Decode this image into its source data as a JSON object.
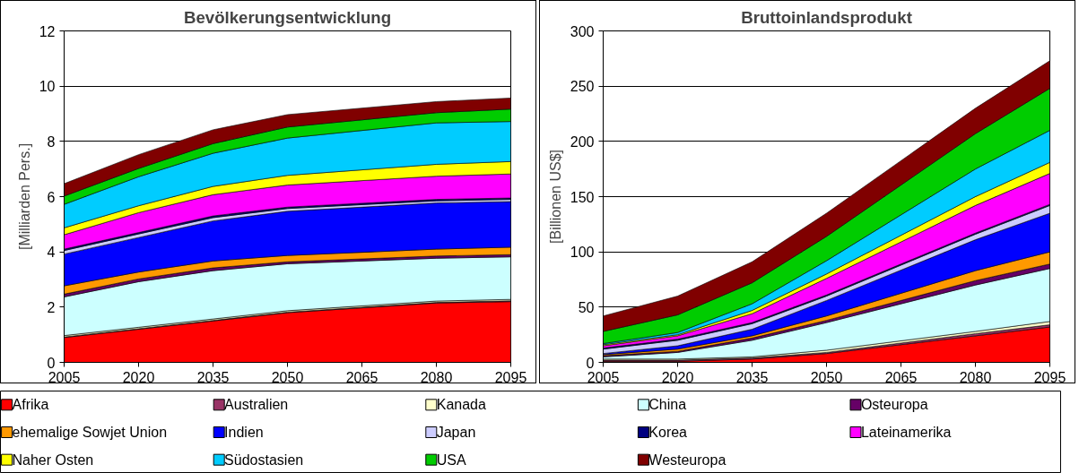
{
  "chart_data": [
    {
      "type": "area",
      "title": "Bevölkerungsentwicklung",
      "ylabel": "[Milliarden Pers.]",
      "stacked": true,
      "x": [
        2005,
        2020,
        2035,
        2050,
        2080,
        2095
      ],
      "xlim": [
        2005,
        2095
      ],
      "xticks": [
        2005,
        2020,
        2035,
        2050,
        2065,
        2080,
        2095
      ],
      "ylim": [
        0,
        12
      ],
      "yticks": [
        0,
        2,
        4,
        6,
        8,
        10,
        12
      ],
      "grid": "y",
      "legend": "bottom",
      "series": [
        {
          "name": "Afrika",
          "color": "#ff0000",
          "values": [
            0.9,
            1.2,
            1.5,
            1.8,
            2.15,
            2.2
          ]
        },
        {
          "name": "Australien",
          "color": "#993366",
          "values": [
            0.02,
            0.02,
            0.02,
            0.02,
            0.02,
            0.03
          ]
        },
        {
          "name": "Kanada",
          "color": "#ffffcc",
          "values": [
            0.05,
            0.05,
            0.05,
            0.05,
            0.05,
            0.05
          ]
        },
        {
          "name": "China",
          "color": "#ccffff",
          "values": [
            1.4,
            1.65,
            1.75,
            1.7,
            1.55,
            1.54
          ]
        },
        {
          "name": "Osteuropa",
          "color": "#660066",
          "values": [
            0.1,
            0.1,
            0.1,
            0.07,
            0.08,
            0.08
          ]
        },
        {
          "name": "ehemalige Sowjet Union",
          "color": "#ff9900",
          "values": [
            0.3,
            0.25,
            0.25,
            0.23,
            0.25,
            0.27
          ]
        },
        {
          "name": "Indien",
          "color": "#0000ff",
          "values": [
            1.15,
            1.25,
            1.45,
            1.6,
            1.67,
            1.65
          ]
        },
        {
          "name": "Japan",
          "color": "#ccccff",
          "values": [
            0.13,
            0.13,
            0.12,
            0.1,
            0.08,
            0.08
          ]
        },
        {
          "name": "Korea",
          "color": "#000080",
          "values": [
            0.05,
            0.05,
            0.06,
            0.05,
            0.05,
            0.05
          ]
        },
        {
          "name": "Lateinamerika",
          "color": "#ff00ff",
          "values": [
            0.52,
            0.72,
            0.77,
            0.8,
            0.84,
            0.87
          ]
        },
        {
          "name": "Naher Osten",
          "color": "#ffff00",
          "values": [
            0.25,
            0.25,
            0.3,
            0.35,
            0.43,
            0.45
          ]
        },
        {
          "name": "Südostasien",
          "color": "#00ccff",
          "values": [
            0.85,
            1.05,
            1.2,
            1.35,
            1.5,
            1.45
          ]
        },
        {
          "name": "USA",
          "color": "#00cc00",
          "values": [
            0.3,
            0.3,
            0.35,
            0.4,
            0.37,
            0.45
          ]
        },
        {
          "name": "Westeuropa",
          "color": "#800000",
          "values": [
            0.45,
            0.5,
            0.5,
            0.45,
            0.4,
            0.4
          ]
        }
      ]
    },
    {
      "type": "area",
      "title": "Bruttoinlandsprodukt",
      "ylabel": "[Billionen US$]",
      "stacked": true,
      "x": [
        2005,
        2020,
        2035,
        2050,
        2080,
        2095
      ],
      "xlim": [
        2005,
        2095
      ],
      "xticks": [
        2005,
        2020,
        2035,
        2050,
        2065,
        2080,
        2095
      ],
      "ylim": [
        0,
        300
      ],
      "yticks": [
        0,
        50,
        100,
        150,
        200,
        250,
        300
      ],
      "grid": "y",
      "series": [
        {
          "color": "#ff0000",
          "values": [
            1,
            1,
            3,
            8,
            24,
            32
          ]
        },
        {
          "color": "#993366",
          "values": [
            1,
            1,
            1,
            1,
            2,
            2
          ]
        },
        {
          "color": "#ffffcc",
          "values": [
            1,
            1,
            1,
            2,
            2,
            3
          ]
        },
        {
          "color": "#ccffff",
          "values": [
            2,
            6,
            15,
            25,
            42,
            48
          ]
        },
        {
          "color": "#660066",
          "values": [
            1,
            1,
            2,
            2,
            4,
            4
          ]
        },
        {
          "color": "#ff9900",
          "values": [
            1,
            2,
            2,
            4,
            9,
            11
          ]
        },
        {
          "color": "#0000ff",
          "values": [
            1,
            3,
            6,
            14,
            28,
            35
          ]
        },
        {
          "color": "#ccccff",
          "values": [
            4,
            5,
            5,
            4,
            5,
            7
          ]
        },
        {
          "color": "#000080",
          "values": [
            1,
            1,
            1,
            1,
            1,
            1
          ]
        },
        {
          "color": "#ff00ff",
          "values": [
            2,
            3,
            8,
            15,
            25,
            28
          ]
        },
        {
          "color": "#ffff00",
          "values": [
            1,
            1,
            3,
            4,
            8,
            10
          ]
        },
        {
          "color": "#00ccff",
          "values": [
            1,
            2,
            6,
            12,
            25,
            29
          ]
        },
        {
          "color": "#00cc00",
          "values": [
            11,
            16,
            19,
            22,
            32,
            38
          ]
        },
        {
          "color": "#800000",
          "values": [
            14,
            17,
            19,
            21,
            23,
            25
          ]
        }
      ]
    }
  ]
}
